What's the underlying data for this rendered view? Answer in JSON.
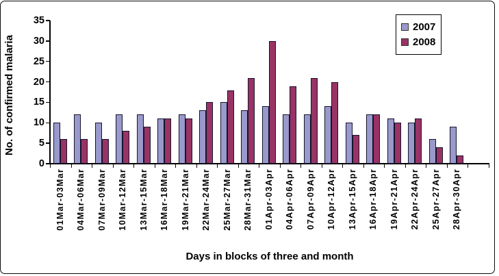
{
  "chart_data": {
    "type": "bar",
    "title": "",
    "xlabel": "Days in blocks of three and month",
    "ylabel": "No. of confirmed malaria",
    "ylim": [
      0,
      35
    ],
    "ytick_step": 5,
    "grid": false,
    "legend_position": "top-right",
    "bar_border_color": "#14142b",
    "categories": [
      "01Mar-03Mar",
      "04Mar-06Mar",
      "07Mar-09Mar",
      "10Mar-12Mar",
      "13Mar-15Mar",
      "16Mar-18Mar",
      "19Mar-21Mar",
      "22Mar-24Mar",
      "25Mar-27Mar",
      "28Mar-31Mar",
      "01Apr-03Apr",
      "04Apr-06Apr",
      "07Apr-09Apr",
      "10Apr-12Apr",
      "13Apr-15Apr",
      "16Apr-18Apr",
      "19Apr-21Apr",
      "22Apr-24Apr",
      "25Apr-27Apr",
      "28Apr-30Apr"
    ],
    "series": [
      {
        "name": "2007",
        "color": "#9999CC",
        "values": [
          10,
          12,
          10,
          12,
          12,
          11,
          12,
          13,
          15,
          13,
          14,
          12,
          12,
          14,
          10,
          12,
          11,
          10,
          6,
          9
        ]
      },
      {
        "name": "2008",
        "color": "#993366",
        "values": [
          6,
          6,
          6,
          8,
          9,
          11,
          11,
          15,
          18,
          21,
          30,
          19,
          21,
          20,
          7,
          12,
          10,
          11,
          4,
          2
        ]
      }
    ]
  }
}
